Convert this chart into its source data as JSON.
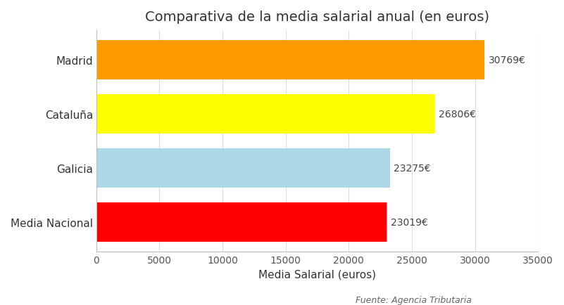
{
  "title": "Comparativa de la media salarial anual (en euros)",
  "categories": [
    "Media Nacional",
    "Galicia",
    "Cataluña",
    "Madrid"
  ],
  "values": [
    23019,
    23275,
    26806,
    30769
  ],
  "bar_colors": [
    "#ff0000",
    "#add8e6",
    "#ffff00",
    "#ff9900"
  ],
  "bar_labels": [
    "23019€",
    "23275€",
    "26806€",
    "30769€"
  ],
  "xlabel": "Media Salarial (euros)",
  "xlim": [
    0,
    35000
  ],
  "xticks": [
    0,
    5000,
    10000,
    15000,
    20000,
    25000,
    30000,
    35000
  ],
  "footnote": "Fuente: Agencia Tributaria",
  "background_color": "#ffffff",
  "grid_color": "#dddddd",
  "title_fontsize": 14,
  "label_fontsize": 11,
  "tick_fontsize": 10,
  "annotation_fontsize": 10,
  "bar_height": 0.72
}
